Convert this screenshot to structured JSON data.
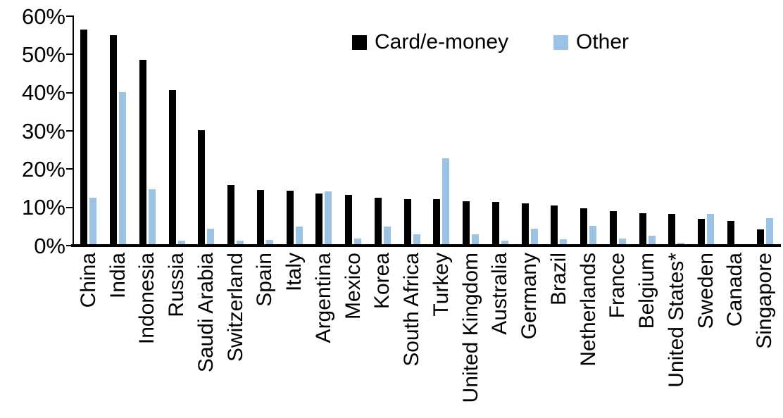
{
  "legend": {
    "card_label": "Card/e-money",
    "other_label": "Other"
  },
  "colors": {
    "card": "#000000",
    "other": "#9BC3E6",
    "axis": "#000000"
  },
  "y_axis": {
    "tick_labels": [
      "60%",
      "50%",
      "40%",
      "30%",
      "20%",
      "10%",
      "0%"
    ]
  },
  "chart_data": {
    "type": "bar",
    "title": "",
    "xlabel": "",
    "ylabel": "",
    "ylim": [
      0,
      60
    ],
    "ytick_step": 10,
    "grid": false,
    "legend_position": "top-center",
    "categories": [
      "China",
      "India",
      "Indonesia",
      "Russia",
      "Saudi Arabia",
      "Switzerland",
      "Spain",
      "Italy",
      "Argentina",
      "Mexico",
      "Korea",
      "South Africa",
      "Turkey",
      "United Kingdom",
      "Australia",
      "Germany",
      "Brazil",
      "Netherlands",
      "France",
      "Belgium",
      "United States*",
      "Sweden",
      "Canada",
      "Singapore"
    ],
    "series": [
      {
        "name": "Card/e-money",
        "color": "#000000",
        "values": [
          56.5,
          55,
          48.5,
          40.5,
          30,
          15.6,
          14.3,
          14.1,
          13.4,
          13,
          12.3,
          11.9,
          11.8,
          11.3,
          11.1,
          10.7,
          10.1,
          9.4,
          8.7,
          8.2,
          7.9,
          6.6,
          6.1,
          3.8
        ]
      },
      {
        "name": "Other",
        "color": "#9BC3E6",
        "values": [
          12.3,
          40,
          14.5,
          1,
          4,
          0.9,
          1.1,
          4.6,
          13.8,
          1.4,
          4.7,
          2.6,
          22.6,
          2.5,
          1,
          4,
          1.3,
          4.9,
          1.5,
          2.2,
          0.3,
          8,
          0,
          6.8
        ]
      }
    ]
  }
}
